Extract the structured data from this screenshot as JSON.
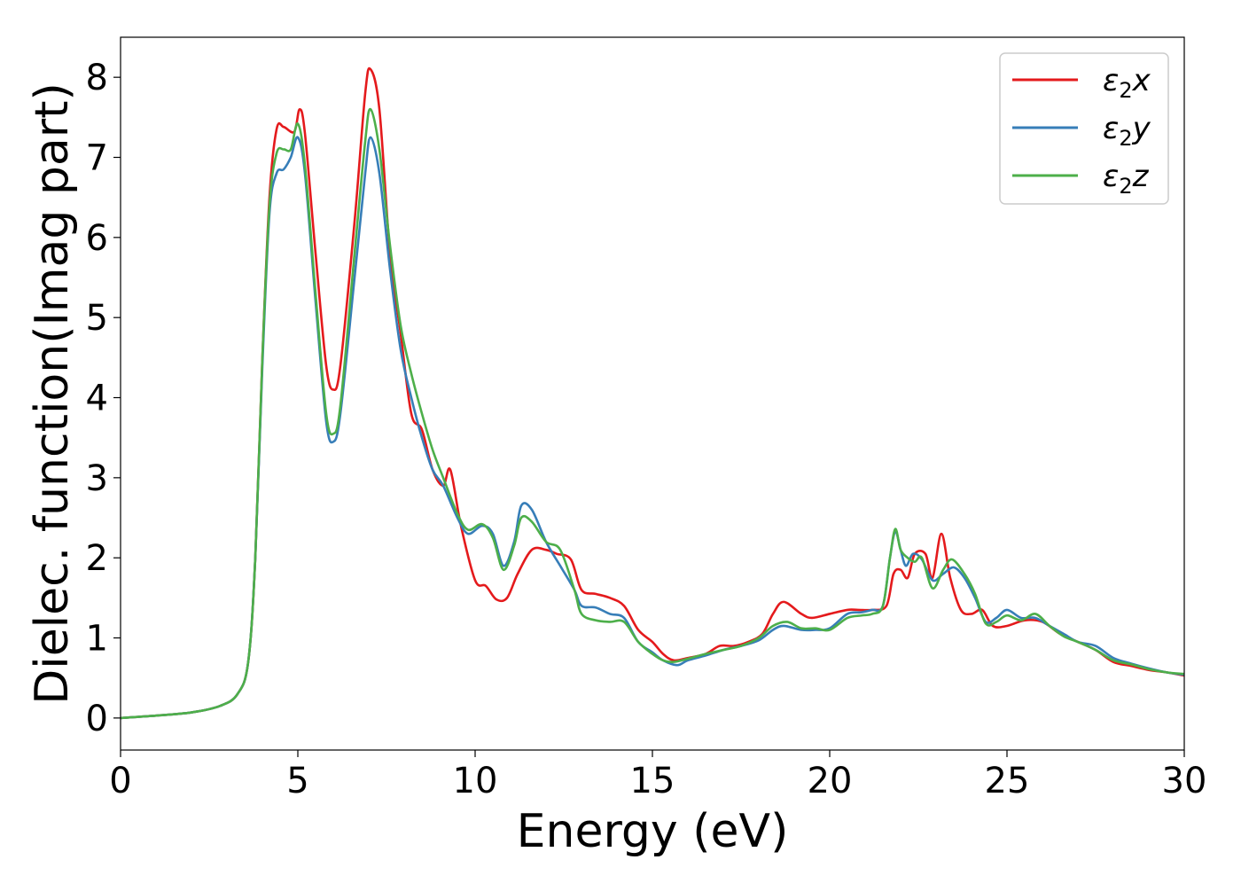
{
  "chart_data": {
    "type": "line",
    "title": "",
    "xlabel": "Energy (eV)",
    "ylabel": "Dielec. function(Imag part)",
    "xlim": [
      0,
      30
    ],
    "ylim": [
      -0.4,
      8.5
    ],
    "xticks": [
      0,
      5,
      10,
      15,
      20,
      25,
      30
    ],
    "yticks": [
      0,
      1,
      2,
      3,
      4,
      5,
      6,
      7,
      8
    ],
    "grid": false,
    "legend": {
      "position": "top-right",
      "entries": [
        {
          "symbol": "ε",
          "subscript": "2",
          "suffix": "x",
          "color": "#e41a1c"
        },
        {
          "symbol": "ε",
          "subscript": "2",
          "suffix": "y",
          "color": "#377eb8"
        },
        {
          "symbol": "ε",
          "subscript": "2",
          "suffix": "z",
          "color": "#4daf4a"
        }
      ]
    },
    "series": [
      {
        "name": "ε2x",
        "color": "#e41a1c",
        "points": [
          [
            0,
            0
          ],
          [
            1,
            0.03
          ],
          [
            2,
            0.07
          ],
          [
            2.8,
            0.15
          ],
          [
            3.3,
            0.3
          ],
          [
            3.6,
            0.7
          ],
          [
            3.8,
            2.0
          ],
          [
            4.0,
            4.5
          ],
          [
            4.2,
            6.5
          ],
          [
            4.4,
            7.35
          ],
          [
            4.6,
            7.38
          ],
          [
            4.9,
            7.32
          ],
          [
            5.05,
            7.6
          ],
          [
            5.2,
            7.3
          ],
          [
            5.5,
            5.8
          ],
          [
            5.8,
            4.4
          ],
          [
            6.0,
            4.1
          ],
          [
            6.2,
            4.4
          ],
          [
            6.6,
            6.2
          ],
          [
            6.9,
            7.8
          ],
          [
            7.05,
            8.1
          ],
          [
            7.3,
            7.6
          ],
          [
            7.6,
            5.8
          ],
          [
            7.9,
            4.8
          ],
          [
            8.2,
            3.8
          ],
          [
            8.5,
            3.6
          ],
          [
            8.8,
            3.1
          ],
          [
            9.1,
            2.9
          ],
          [
            9.3,
            3.1
          ],
          [
            9.6,
            2.4
          ],
          [
            10,
            1.72
          ],
          [
            10.3,
            1.65
          ],
          [
            10.6,
            1.48
          ],
          [
            10.9,
            1.5
          ],
          [
            11.2,
            1.8
          ],
          [
            11.6,
            2.1
          ],
          [
            12,
            2.1
          ],
          [
            12.3,
            2.05
          ],
          [
            12.7,
            1.98
          ],
          [
            13,
            1.6
          ],
          [
            13.4,
            1.55
          ],
          [
            13.8,
            1.5
          ],
          [
            14.2,
            1.4
          ],
          [
            14.6,
            1.1
          ],
          [
            15,
            0.95
          ],
          [
            15.3,
            0.8
          ],
          [
            15.6,
            0.72
          ],
          [
            16,
            0.75
          ],
          [
            16.5,
            0.8
          ],
          [
            16.9,
            0.9
          ],
          [
            17.3,
            0.9
          ],
          [
            17.7,
            0.95
          ],
          [
            18.1,
            1.05
          ],
          [
            18.4,
            1.3
          ],
          [
            18.7,
            1.45
          ],
          [
            19.2,
            1.3
          ],
          [
            19.5,
            1.25
          ],
          [
            20,
            1.3
          ],
          [
            20.5,
            1.35
          ],
          [
            20.8,
            1.35
          ],
          [
            21.2,
            1.35
          ],
          [
            21.6,
            1.4
          ],
          [
            21.8,
            1.8
          ],
          [
            22,
            1.85
          ],
          [
            22.2,
            1.75
          ],
          [
            22.4,
            2.05
          ],
          [
            22.7,
            2.05
          ],
          [
            22.9,
            1.75
          ],
          [
            23.15,
            2.3
          ],
          [
            23.4,
            1.75
          ],
          [
            23.7,
            1.35
          ],
          [
            24,
            1.3
          ],
          [
            24.3,
            1.35
          ],
          [
            24.6,
            1.15
          ],
          [
            25,
            1.15
          ],
          [
            25.5,
            1.22
          ],
          [
            26,
            1.2
          ],
          [
            26.5,
            1.05
          ],
          [
            27,
            0.95
          ],
          [
            27.5,
            0.85
          ],
          [
            28,
            0.7
          ],
          [
            28.5,
            0.65
          ],
          [
            29,
            0.6
          ],
          [
            29.5,
            0.57
          ],
          [
            30,
            0.53
          ]
        ]
      },
      {
        "name": "ε2y",
        "color": "#377eb8",
        "points": [
          [
            0,
            0
          ],
          [
            1,
            0.03
          ],
          [
            2,
            0.07
          ],
          [
            2.8,
            0.15
          ],
          [
            3.3,
            0.3
          ],
          [
            3.6,
            0.7
          ],
          [
            3.8,
            2.0
          ],
          [
            4.0,
            4.4
          ],
          [
            4.2,
            6.3
          ],
          [
            4.4,
            6.8
          ],
          [
            4.6,
            6.85
          ],
          [
            4.8,
            7.0
          ],
          [
            5.0,
            7.25
          ],
          [
            5.2,
            6.8
          ],
          [
            5.5,
            5.2
          ],
          [
            5.8,
            3.7
          ],
          [
            6.0,
            3.45
          ],
          [
            6.2,
            3.8
          ],
          [
            6.6,
            5.5
          ],
          [
            6.9,
            6.8
          ],
          [
            7.05,
            7.25
          ],
          [
            7.3,
            6.8
          ],
          [
            7.6,
            5.6
          ],
          [
            7.9,
            4.6
          ],
          [
            8.2,
            4.0
          ],
          [
            8.5,
            3.5
          ],
          [
            8.8,
            3.1
          ],
          [
            9.1,
            2.9
          ],
          [
            9.5,
            2.5
          ],
          [
            9.8,
            2.3
          ],
          [
            10.2,
            2.4
          ],
          [
            10.5,
            2.3
          ],
          [
            10.8,
            1.9
          ],
          [
            11.1,
            2.2
          ],
          [
            11.3,
            2.65
          ],
          [
            11.6,
            2.6
          ],
          [
            12,
            2.2
          ],
          [
            12.4,
            1.9
          ],
          [
            12.8,
            1.6
          ],
          [
            13,
            1.4
          ],
          [
            13.4,
            1.38
          ],
          [
            13.8,
            1.3
          ],
          [
            14.2,
            1.25
          ],
          [
            14.6,
            0.95
          ],
          [
            15,
            0.82
          ],
          [
            15.3,
            0.72
          ],
          [
            15.7,
            0.66
          ],
          [
            16,
            0.72
          ],
          [
            16.5,
            0.78
          ],
          [
            17,
            0.85
          ],
          [
            17.5,
            0.9
          ],
          [
            18,
            0.97
          ],
          [
            18.4,
            1.1
          ],
          [
            18.7,
            1.15
          ],
          [
            19.2,
            1.1
          ],
          [
            19.6,
            1.1
          ],
          [
            20,
            1.12
          ],
          [
            20.5,
            1.3
          ],
          [
            20.9,
            1.32
          ],
          [
            21.2,
            1.35
          ],
          [
            21.5,
            1.4
          ],
          [
            21.7,
            2.0
          ],
          [
            21.85,
            2.33
          ],
          [
            22,
            2.1
          ],
          [
            22.15,
            1.9
          ],
          [
            22.35,
            2.05
          ],
          [
            22.6,
            1.98
          ],
          [
            22.9,
            1.72
          ],
          [
            23.2,
            1.8
          ],
          [
            23.5,
            1.88
          ],
          [
            23.8,
            1.75
          ],
          [
            24.1,
            1.5
          ],
          [
            24.4,
            1.2
          ],
          [
            24.7,
            1.25
          ],
          [
            25,
            1.35
          ],
          [
            25.4,
            1.25
          ],
          [
            25.8,
            1.25
          ],
          [
            26.2,
            1.15
          ],
          [
            26.6,
            1.05
          ],
          [
            27,
            0.95
          ],
          [
            27.5,
            0.9
          ],
          [
            28,
            0.75
          ],
          [
            28.5,
            0.68
          ],
          [
            29,
            0.62
          ],
          [
            29.5,
            0.57
          ],
          [
            30,
            0.54
          ]
        ]
      },
      {
        "name": "ε2z",
        "color": "#4daf4a",
        "points": [
          [
            0,
            0
          ],
          [
            1,
            0.03
          ],
          [
            2,
            0.07
          ],
          [
            2.8,
            0.15
          ],
          [
            3.3,
            0.3
          ],
          [
            3.6,
            0.7
          ],
          [
            3.8,
            2.0
          ],
          [
            4.0,
            4.5
          ],
          [
            4.2,
            6.4
          ],
          [
            4.4,
            7.05
          ],
          [
            4.6,
            7.1
          ],
          [
            4.8,
            7.1
          ],
          [
            5.0,
            7.42
          ],
          [
            5.2,
            6.9
          ],
          [
            5.5,
            5.3
          ],
          [
            5.8,
            3.8
          ],
          [
            6.0,
            3.55
          ],
          [
            6.2,
            3.9
          ],
          [
            6.6,
            5.8
          ],
          [
            6.9,
            7.2
          ],
          [
            7.05,
            7.6
          ],
          [
            7.3,
            7.1
          ],
          [
            7.6,
            5.9
          ],
          [
            7.9,
            4.9
          ],
          [
            8.2,
            4.3
          ],
          [
            8.5,
            3.8
          ],
          [
            8.8,
            3.35
          ],
          [
            9.1,
            3.0
          ],
          [
            9.5,
            2.55
          ],
          [
            9.8,
            2.35
          ],
          [
            10.2,
            2.42
          ],
          [
            10.5,
            2.25
          ],
          [
            10.8,
            1.85
          ],
          [
            11.1,
            2.15
          ],
          [
            11.3,
            2.5
          ],
          [
            11.6,
            2.45
          ],
          [
            12,
            2.2
          ],
          [
            12.4,
            2.1
          ],
          [
            12.8,
            1.6
          ],
          [
            13,
            1.3
          ],
          [
            13.4,
            1.22
          ],
          [
            13.8,
            1.2
          ],
          [
            14.2,
            1.2
          ],
          [
            14.6,
            0.95
          ],
          [
            15,
            0.8
          ],
          [
            15.3,
            0.72
          ],
          [
            15.6,
            0.7
          ],
          [
            16,
            0.74
          ],
          [
            16.5,
            0.8
          ],
          [
            17,
            0.85
          ],
          [
            17.5,
            0.9
          ],
          [
            18,
            1.0
          ],
          [
            18.4,
            1.15
          ],
          [
            18.8,
            1.2
          ],
          [
            19.2,
            1.12
          ],
          [
            19.6,
            1.12
          ],
          [
            20,
            1.1
          ],
          [
            20.5,
            1.25
          ],
          [
            20.9,
            1.28
          ],
          [
            21.2,
            1.3
          ],
          [
            21.5,
            1.4
          ],
          [
            21.7,
            2.0
          ],
          [
            21.85,
            2.36
          ],
          [
            22,
            2.1
          ],
          [
            22.2,
            2.0
          ],
          [
            22.4,
            1.95
          ],
          [
            22.6,
            2.0
          ],
          [
            22.9,
            1.62
          ],
          [
            23.2,
            1.85
          ],
          [
            23.45,
            1.98
          ],
          [
            23.8,
            1.8
          ],
          [
            24.1,
            1.55
          ],
          [
            24.4,
            1.18
          ],
          [
            24.7,
            1.2
          ],
          [
            25,
            1.28
          ],
          [
            25.4,
            1.22
          ],
          [
            25.8,
            1.3
          ],
          [
            26.2,
            1.15
          ],
          [
            26.6,
            1.02
          ],
          [
            27,
            0.95
          ],
          [
            27.5,
            0.85
          ],
          [
            28,
            0.72
          ],
          [
            28.5,
            0.67
          ],
          [
            29,
            0.61
          ],
          [
            29.5,
            0.57
          ],
          [
            30,
            0.55
          ]
        ]
      }
    ]
  }
}
